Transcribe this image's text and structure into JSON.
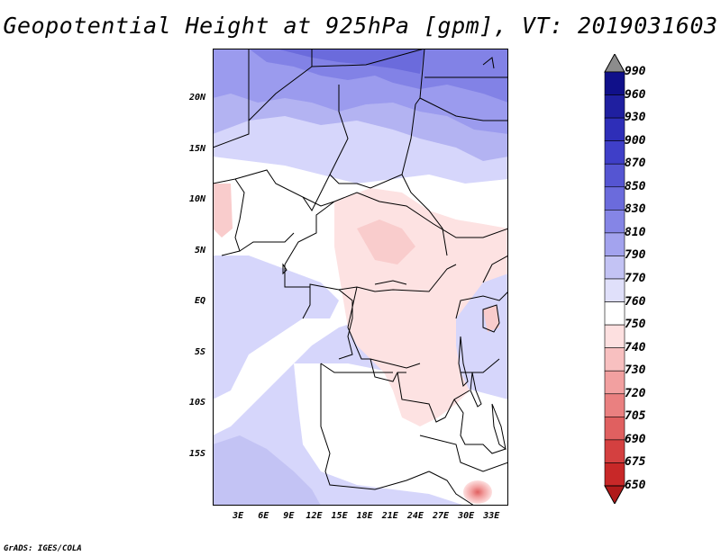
{
  "title": "Geopotential Height at 925hPa [gpm], VT: 2019031603",
  "credit": "GrADS: IGES/COLA",
  "lat_labels": [
    "20N",
    "15N",
    "10N",
    "5N",
    "EQ",
    "5S",
    "10S",
    "15S"
  ],
  "lat_values": [
    20,
    15,
    10,
    5,
    0,
    -5,
    -10,
    -15
  ],
  "lon_labels": [
    "3E",
    "6E",
    "9E",
    "12E",
    "15E",
    "18E",
    "21E",
    "24E",
    "27E",
    "30E",
    "33E"
  ],
  "lon_values": [
    3,
    6,
    9,
    12,
    15,
    18,
    21,
    24,
    27,
    30,
    33
  ],
  "extent": {
    "lon_min": 0,
    "lon_max": 35,
    "lat_min": -20,
    "lat_max": 25
  },
  "colorbar": {
    "labels": [
      "990",
      "960",
      "930",
      "900",
      "870",
      "850",
      "830",
      "810",
      "790",
      "770",
      "760",
      "750",
      "740",
      "730",
      "720",
      "705",
      "690",
      "675",
      "650"
    ],
    "colors": [
      "#8c8c8c",
      "#10108a",
      "#1f1fa0",
      "#2e2eb8",
      "#3f3fc8",
      "#5555d2",
      "#6b6bdc",
      "#8585e6",
      "#a3a3ee",
      "#c3c3f4",
      "#e0e0fa",
      "#ffffff",
      "#fde0e0",
      "#f8c0c0",
      "#f2a0a0",
      "#ea8080",
      "#e06060",
      "#d44040",
      "#c82828",
      "#b01a1a"
    ]
  }
}
